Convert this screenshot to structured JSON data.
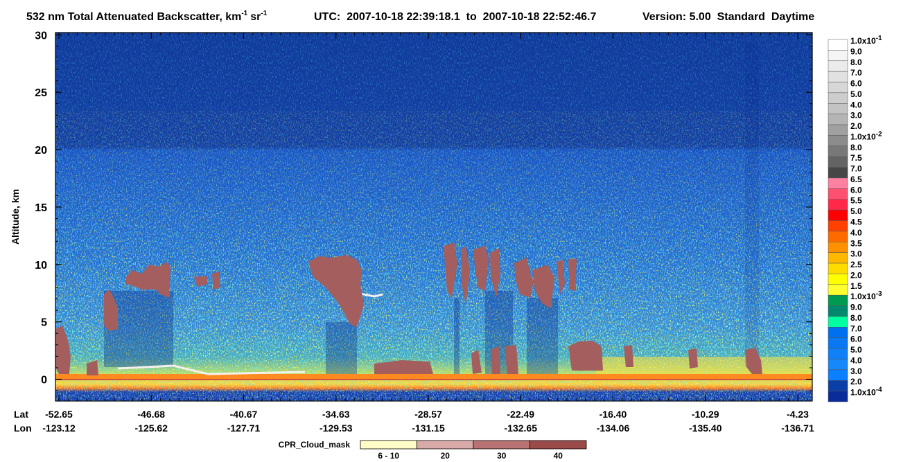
{
  "chart_data": {
    "type": "curtain",
    "title": "532 nm Total Attenuated Backscatter, km",
    "title_exp1": "-1",
    "title_unit": "sr",
    "title_exp2": "-1",
    "time_range": "UTC:  2007-10-18 22:39:18.1  to  2007-10-18 22:52:46.7",
    "version": "Version: 5.00  Standard  Daytime",
    "y_label": "Altitude, km",
    "ylim": [
      -1.9,
      30.2
    ],
    "yticks": [
      0,
      5,
      10,
      15,
      20,
      25,
      30
    ],
    "x_row_labels": [
      "Lat",
      "Lon"
    ],
    "lat": [
      "-52.65",
      "-46.68",
      "-40.67",
      "-34.63",
      "-28.57",
      "-22.49",
      "-16.40",
      "-10.29",
      "-4.23"
    ],
    "lon": [
      "-123.12",
      "-125.62",
      "-127.71",
      "-129.53",
      "-131.15",
      "-132.65",
      "-134.06",
      "-135.40",
      "-136.71"
    ],
    "colorbar_labels": [
      {
        "text": "1.0x10",
        "exp": "-1"
      },
      "9.0",
      "8.0",
      "7.0",
      "6.0",
      "5.0",
      "4.0",
      "3.0",
      "2.0",
      {
        "text": "1.0x10",
        "exp": "-2"
      },
      "8.0",
      "7.5",
      "7.0",
      "6.5",
      "6.0",
      "5.5",
      "5.0",
      "4.5",
      "4.0",
      "3.5",
      "3.0",
      "2.5",
      "2.0",
      "1.5",
      {
        "text": "1.0x10",
        "exp": "-3"
      },
      "9.0",
      "8.0",
      "7.0",
      "6.0",
      "5.0",
      "4.0",
      "3.0",
      "2.0",
      {
        "text": "1.0x10",
        "exp": "-4"
      }
    ],
    "colorbar_colors": [
      "#ffffff",
      "#f5f5f5",
      "#ebebeb",
      "#e1e1e1",
      "#d7d7d7",
      "#cdcdcd",
      "#c3c3c3",
      "#b4b4b4",
      "#a0a0a0",
      "#8c8c8c",
      "#787878",
      "#646464",
      "#464646",
      "#ff80a0",
      "#ff5070",
      "#ff2848",
      "#ff0000",
      "#ff4000",
      "#ff6a00",
      "#ff9000",
      "#ffb800",
      "#ffdc00",
      "#ffff00",
      "#ffff30",
      "#009a50",
      "#00896e",
      "#00ffa0",
      "#0070f0",
      "#0a78f5",
      "#1080f8",
      "#1688fa",
      "#0a80ff",
      "#0a3fa8",
      "#0a2c9a"
    ],
    "cloud_mask_title": "CPR_Cloud_mask",
    "cloud_mask_labels": [
      "6 - 10",
      "20",
      "30",
      "40"
    ],
    "cloud_mask_colors": [
      "#fffcc8",
      "#d8aaaa",
      "#b87272",
      "#9a4a48"
    ]
  }
}
